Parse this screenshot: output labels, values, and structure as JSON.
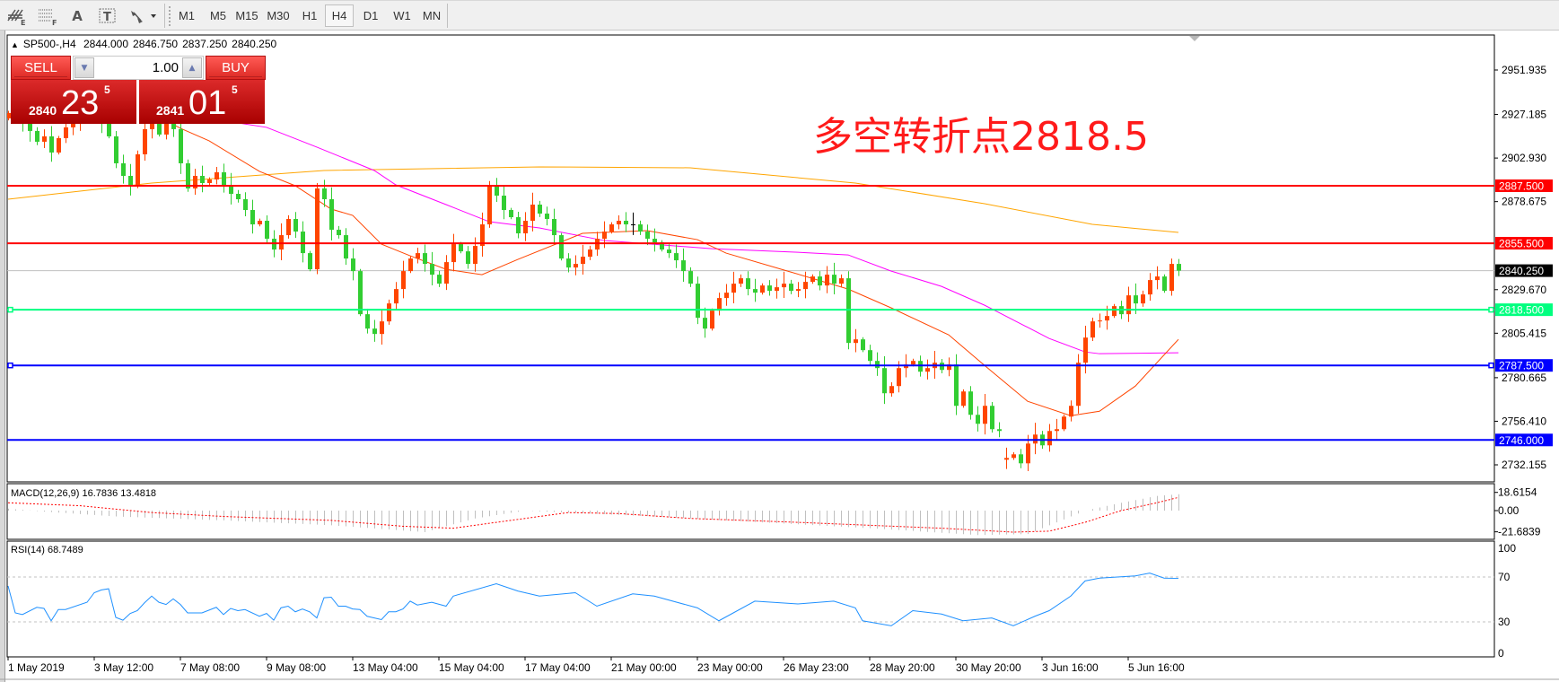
{
  "toolbar": {
    "tools": [
      {
        "icon": "fibonacci-expansion-icon",
        "sub": "E"
      },
      {
        "icon": "fibonacci-fan-icon",
        "sub": "F"
      },
      {
        "icon": "text-icon",
        "label": "A"
      },
      {
        "icon": "text-label-icon",
        "label": "T"
      },
      {
        "icon": "arrows-dropdown-icon"
      }
    ],
    "timeframes": [
      "M1",
      "M5",
      "M15",
      "M30",
      "H1",
      "H4",
      "D1",
      "W1",
      "MN"
    ],
    "active_timeframe": "H4"
  },
  "chart_info": {
    "arrow": "▲",
    "symbol": "SP500-,H4",
    "open": "2844.000",
    "high": "2846.750",
    "low": "2837.250",
    "close": "2840.250"
  },
  "trade_panel": {
    "sell_label": "SELL",
    "buy_label": "BUY",
    "lot": "1.00",
    "sell_price": {
      "big": "2840",
      "main": "23",
      "sup": "5"
    },
    "buy_price": {
      "big": "2841",
      "main": "01",
      "sup": "5"
    }
  },
  "annotation": "多空转折点2818.5",
  "chart_data": {
    "type": "candlestick",
    "colors": {
      "up": "#FF4500",
      "down": "#32CD32",
      "doji": "#000000"
    },
    "y_ticks": [
      "2951.935",
      "2927.185",
      "2902.930",
      "2878.675",
      "2829.670",
      "2805.415",
      "2780.665",
      "2756.410",
      "2732.155"
    ],
    "levels": [
      {
        "price": 2887.5,
        "label": "2887.500",
        "color": "#FF0000"
      },
      {
        "price": 2855.5,
        "label": "2855.500",
        "color": "#FF0000"
      },
      {
        "price": 2818.5,
        "label": "2818.500",
        "color": "#00FF7F",
        "handles": true
      },
      {
        "price": 2787.5,
        "label": "2787.500",
        "color": "#0000FF",
        "handles": true
      },
      {
        "price": 2746.0,
        "label": "2746.000",
        "color": "#0000FF"
      }
    ],
    "bid": {
      "price": 2840.25,
      "label": "2840.250",
      "color": "#C0C0C0"
    },
    "last_bar": {
      "open": 2844.0,
      "high": 2846.75,
      "low": 2837.25,
      "close": 2840.25
    },
    "closes": [
      2928,
      2931,
      2922,
      2918,
      2912,
      2915,
      2906,
      2914,
      2920,
      2924,
      2928,
      2930,
      2926,
      2922,
      2915,
      2900,
      2893,
      2888,
      2905,
      2919,
      2922,
      2916,
      2923,
      2919,
      2900,
      2886,
      2893,
      2889,
      2891,
      2895,
      2888,
      2883,
      2880,
      2874,
      2866,
      2868,
      2858,
      2852,
      2860,
      2869,
      2862,
      2850,
      2841,
      2886,
      2880,
      2863,
      2860,
      2847,
      2840,
      2816,
      2808,
      2805,
      2812,
      2822,
      2830,
      2840,
      2847,
      2850,
      2844,
      2838,
      2833,
      2845,
      2855,
      2851,
      2844,
      2854,
      2866,
      2888,
      2882,
      2874,
      2870,
      2861,
      2868,
      2877,
      2872,
      2869,
      2860,
      2847,
      2842,
      2844,
      2848,
      2852,
      2858,
      2862,
      2866,
      2868,
      2866,
      2866,
      2862,
      2858,
      2856,
      2852,
      2850,
      2846,
      2840,
      2833,
      2814,
      2808,
      2818,
      2825,
      2828,
      2833,
      2836,
      2830,
      2828,
      2832,
      2829,
      2831,
      2833,
      2829,
      2830,
      2834,
      2837,
      2832,
      2838,
      2833,
      2836,
      2800,
      2802,
      2796,
      2790,
      2786,
      2772,
      2776,
      2786,
      2788,
      2790,
      2784,
      2786,
      2789,
      2785,
      2788,
      2765,
      2773,
      2760,
      2755,
      2765,
      2752,
      2751,
      2736,
      2738,
      2733,
      2744,
      2749,
      2743,
      2751,
      2752,
      2759,
      2765,
      2789,
      2803,
      2812,
      2812.5,
      2815,
      2820.5,
      2816,
      2826.5,
      2822,
      2827,
      2835,
      2837,
      2829,
      2844,
      2840.25
    ],
    "moving_averages": [
      {
        "color": "#FFA500",
        "points": [
          [
            0,
            2880
          ],
          [
            20,
            2889
          ],
          [
            44,
            2896
          ],
          [
            74,
            2898
          ],
          [
            95,
            2897.5
          ],
          [
            118,
            2889
          ],
          [
            136,
            2877.5
          ],
          [
            151,
            2866
          ],
          [
            163,
            2861.5
          ]
        ]
      },
      {
        "color": "#FF00FF",
        "points": [
          [
            20,
            2930
          ],
          [
            36,
            2920
          ],
          [
            43,
            2909
          ],
          [
            51,
            2896
          ],
          [
            54,
            2888
          ],
          [
            61,
            2877
          ],
          [
            67,
            2867.5
          ],
          [
            74,
            2864
          ],
          [
            83,
            2857
          ],
          [
            98,
            2852.5
          ],
          [
            110,
            2850.5
          ],
          [
            117,
            2849
          ],
          [
            123,
            2840
          ],
          [
            130,
            2831.5
          ],
          [
            136,
            2821
          ],
          [
            137,
            2819
          ],
          [
            145,
            2802.5
          ],
          [
            150,
            2795
          ],
          [
            152,
            2794
          ],
          [
            163,
            2794.5
          ]
        ]
      },
      {
        "color": "#FF4500",
        "points": [
          [
            20,
            2928
          ],
          [
            24,
            2919.5
          ],
          [
            28,
            2912.5
          ],
          [
            35,
            2895.5
          ],
          [
            40,
            2887.5
          ],
          [
            45,
            2874.5
          ],
          [
            48,
            2871
          ],
          [
            52,
            2855
          ],
          [
            56,
            2848.5
          ],
          [
            61,
            2841
          ],
          [
            66,
            2838
          ],
          [
            71,
            2846.5
          ],
          [
            80,
            2861
          ],
          [
            89,
            2862.5
          ],
          [
            96,
            2857.5
          ],
          [
            100,
            2850
          ],
          [
            109,
            2839.5
          ],
          [
            117,
            2830
          ],
          [
            123,
            2819.5
          ],
          [
            131,
            2804.5
          ],
          [
            136,
            2787.5
          ],
          [
            139,
            2777.5
          ],
          [
            142,
            2767.5
          ],
          [
            148,
            2759.5
          ],
          [
            152,
            2762
          ],
          [
            157,
            2776
          ],
          [
            163,
            2802
          ]
        ]
      }
    ],
    "x_labels": [
      "1 May 2019",
      "3 May 12:00",
      "7 May 08:00",
      "9 May 08:00",
      "13 May 04:00",
      "15 May 04:00",
      "17 May 04:00",
      "21 May 00:00",
      "23 May 00:00",
      "26 May 23:00",
      "28 May 20:00",
      "30 May 20:00",
      "3 Jun 16:00",
      "5 Jun 16:00"
    ],
    "macd": {
      "label": "MACD(12,26,9) 16.7836 13.4818",
      "y_ticks": [
        {
          "v": 18.6154,
          "t": "18.6154"
        },
        {
          "v": 0,
          "t": "0.00"
        },
        {
          "v": -21.6839,
          "t": "-21.6839"
        }
      ],
      "hist_color": "#C0C0C0",
      "signal_color": "#FF0000",
      "hist": [
        [
          0,
          2
        ],
        [
          5,
          -1
        ],
        [
          15,
          -6
        ],
        [
          30,
          -10
        ],
        [
          45,
          -15
        ],
        [
          58,
          -22
        ],
        [
          65,
          -8
        ],
        [
          72,
          0
        ],
        [
          78,
          -2
        ],
        [
          90,
          -6
        ],
        [
          105,
          -12
        ],
        [
          120,
          -18
        ],
        [
          135,
          -25
        ],
        [
          142,
          -24
        ],
        [
          146,
          -12
        ],
        [
          150,
          0
        ],
        [
          155,
          8
        ],
        [
          160,
          15
        ],
        [
          163,
          16.78
        ]
      ],
      "signal": [
        [
          0,
          8
        ],
        [
          10,
          5
        ],
        [
          20,
          -2
        ],
        [
          30,
          -6
        ],
        [
          45,
          -10
        ],
        [
          55,
          -16
        ],
        [
          62,
          -18
        ],
        [
          70,
          -10
        ],
        [
          78,
          -2
        ],
        [
          85,
          -3
        ],
        [
          95,
          -8
        ],
        [
          110,
          -12
        ],
        [
          120,
          -15
        ],
        [
          130,
          -18
        ],
        [
          140,
          -22
        ],
        [
          145,
          -21
        ],
        [
          150,
          -12
        ],
        [
          155,
          0
        ],
        [
          160,
          8
        ],
        [
          163,
          13.48
        ]
      ]
    },
    "rsi": {
      "label": "RSI(14) 68.7489",
      "y_ticks": [
        "100",
        "70",
        "30",
        "0"
      ],
      "levels": [
        70,
        30
      ],
      "color": "#1E90FF",
      "points": [
        [
          0,
          62
        ],
        [
          1,
          38
        ],
        [
          2,
          36.5
        ],
        [
          4,
          43
        ],
        [
          5,
          42
        ],
        [
          6,
          31
        ],
        [
          7,
          41
        ],
        [
          8,
          41
        ],
        [
          11,
          47.5
        ],
        [
          12,
          56
        ],
        [
          13,
          58.5
        ],
        [
          14,
          59.5
        ],
        [
          15,
          34
        ],
        [
          16,
          31.5
        ],
        [
          17,
          37.5
        ],
        [
          18,
          40
        ],
        [
          19,
          47
        ],
        [
          20,
          53
        ],
        [
          21,
          47.5
        ],
        [
          22,
          45.5
        ],
        [
          23,
          50.5
        ],
        [
          24,
          45.5
        ],
        [
          25,
          38
        ],
        [
          27,
          38
        ],
        [
          29,
          43
        ],
        [
          30,
          36.5
        ],
        [
          31,
          42
        ],
        [
          32,
          40
        ],
        [
          33,
          41
        ],
        [
          35,
          35
        ],
        [
          36,
          37.5
        ],
        [
          37,
          31.5
        ],
        [
          38,
          42.5
        ],
        [
          39,
          44
        ],
        [
          40,
          39
        ],
        [
          41,
          41.5
        ],
        [
          42,
          39
        ],
        [
          43,
          33.5
        ],
        [
          44,
          51.5
        ],
        [
          45,
          52
        ],
        [
          46,
          44
        ],
        [
          47,
          44
        ],
        [
          48,
          41.5
        ],
        [
          49,
          41
        ],
        [
          50,
          35
        ],
        [
          52,
          32
        ],
        [
          53,
          39
        ],
        [
          54,
          39
        ],
        [
          55,
          41.5
        ],
        [
          56,
          48.5
        ],
        [
          57,
          45
        ],
        [
          59,
          47.5
        ],
        [
          61,
          44
        ],
        [
          62,
          53
        ],
        [
          68,
          64
        ],
        [
          71,
          57.5
        ],
        [
          74,
          53
        ],
        [
          79,
          56
        ],
        [
          82,
          44
        ],
        [
          87,
          55
        ],
        [
          90,
          53
        ],
        [
          96,
          42.5
        ],
        [
          99,
          31
        ],
        [
          104,
          48.5
        ],
        [
          110,
          46
        ],
        [
          115,
          48.5
        ],
        [
          118,
          42.5
        ],
        [
          119,
          31
        ],
        [
          123,
          26.5
        ],
        [
          126,
          40
        ],
        [
          130,
          37
        ],
        [
          133,
          31
        ],
        [
          137,
          33.5
        ],
        [
          140,
          26.5
        ],
        [
          143,
          35
        ],
        [
          145,
          40
        ],
        [
          148,
          53
        ],
        [
          150,
          66.5
        ],
        [
          152,
          69
        ],
        [
          157,
          71
        ],
        [
          159,
          73.5
        ],
        [
          161,
          69
        ],
        [
          163,
          68.75
        ]
      ]
    }
  }
}
